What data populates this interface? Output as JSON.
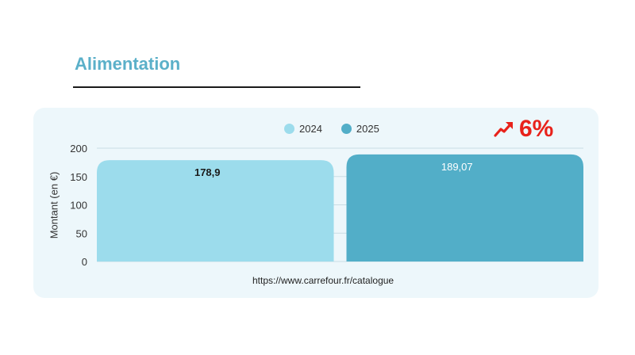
{
  "page": {
    "title": "Alimentation"
  },
  "trend": {
    "value": "6%",
    "icon": "trending-up-icon",
    "color": "#e8221b"
  },
  "source": "https://www.carrefour.fr/catalogue",
  "chart_data": {
    "type": "bar",
    "title": "",
    "xlabel": "",
    "ylabel": "Montant (en €)",
    "ylim": [
      0,
      200
    ],
    "yticks": [
      0,
      50,
      100,
      150,
      200
    ],
    "grid": true,
    "legend_position": "top-center",
    "series": [
      {
        "name": "2024",
        "value": 178.9,
        "label": "178,9",
        "color": "#9cdcec",
        "label_color": "#1a1a1a"
      },
      {
        "name": "2025",
        "value": 189.07,
        "label": "189,07",
        "color": "#52aec8",
        "label_color": "#ffffff"
      }
    ]
  }
}
